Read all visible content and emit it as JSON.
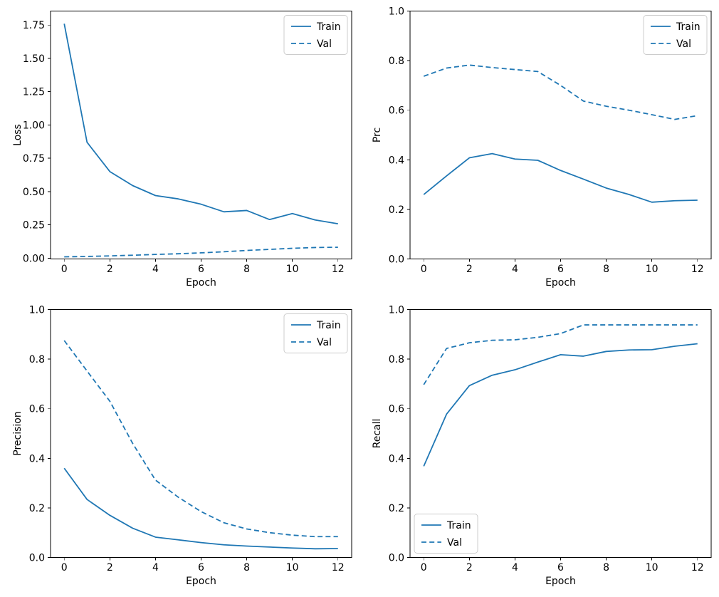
{
  "figure": {
    "background": "#ffffff",
    "line_color": "#1f77b4",
    "spine_color": "#000000",
    "legend_border_color": "#cccccc",
    "legend_background": "rgba(255,255,255,0.85)"
  },
  "chart_data": [
    {
      "name": "loss",
      "type": "line",
      "title": "",
      "xlabel": "Epoch",
      "ylabel": "Loss",
      "x": [
        0,
        1,
        2,
        3,
        4,
        5,
        6,
        7,
        8,
        9,
        10,
        11,
        12
      ],
      "xlim": [
        -0.6,
        12.6
      ],
      "ylim": [
        -0.006,
        1.8555
      ],
      "xticks": [
        0,
        2,
        4,
        6,
        8,
        10,
        12
      ],
      "xtick_labels": [
        "0",
        "2",
        "4",
        "6",
        "8",
        "10",
        "12"
      ],
      "yticks": [
        0.0,
        0.25,
        0.5,
        0.75,
        1.0,
        1.25,
        1.5,
        1.75
      ],
      "ytick_labels": [
        "0.00",
        "0.25",
        "0.50",
        "0.75",
        "1.00",
        "1.25",
        "1.50",
        "1.75"
      ],
      "grid": false,
      "legend_position": "upper right",
      "series": [
        {
          "name": "Train",
          "style": "solid",
          "values": [
            1.76,
            0.87,
            0.65,
            0.545,
            0.47,
            0.445,
            0.405,
            0.348,
            0.358,
            0.29,
            0.335,
            0.287,
            0.258
          ]
        },
        {
          "name": "Val",
          "style": "dashed",
          "values": [
            0.01,
            0.013,
            0.017,
            0.022,
            0.028,
            0.033,
            0.04,
            0.048,
            0.058,
            0.066,
            0.074,
            0.08,
            0.082
          ]
        }
      ]
    },
    {
      "name": "prc",
      "type": "line",
      "title": "",
      "xlabel": "Epoch",
      "ylabel": "Prc",
      "x": [
        0,
        1,
        2,
        3,
        4,
        5,
        6,
        7,
        8,
        9,
        10,
        11,
        12
      ],
      "xlim": [
        -0.6,
        12.6
      ],
      "ylim": [
        0.0,
        1.0
      ],
      "xticks": [
        0,
        2,
        4,
        6,
        8,
        10,
        12
      ],
      "xtick_labels": [
        "0",
        "2",
        "4",
        "6",
        "8",
        "10",
        "12"
      ],
      "yticks": [
        0.0,
        0.2,
        0.4,
        0.6,
        0.8,
        1.0
      ],
      "ytick_labels": [
        "0.0",
        "0.2",
        "0.4",
        "0.6",
        "0.8",
        "1.0"
      ],
      "grid": false,
      "legend_position": "upper right",
      "series": [
        {
          "name": "Train",
          "style": "solid",
          "values": [
            0.26,
            0.335,
            0.408,
            0.425,
            0.403,
            0.398,
            0.357,
            0.322,
            0.286,
            0.26,
            0.229,
            0.235,
            0.237
          ]
        },
        {
          "name": "Val",
          "style": "dashed",
          "values": [
            0.737,
            0.77,
            0.782,
            0.772,
            0.764,
            0.756,
            0.7,
            0.637,
            0.616,
            0.6,
            0.582,
            0.563,
            0.578
          ]
        }
      ]
    },
    {
      "name": "precision",
      "type": "line",
      "title": "",
      "xlabel": "Epoch",
      "ylabel": "Precision",
      "x": [
        0,
        1,
        2,
        3,
        4,
        5,
        6,
        7,
        8,
        9,
        10,
        11,
        12
      ],
      "xlim": [
        -0.6,
        12.6
      ],
      "ylim": [
        0.0,
        1.0
      ],
      "xticks": [
        0,
        2,
        4,
        6,
        8,
        10,
        12
      ],
      "xtick_labels": [
        "0",
        "2",
        "4",
        "6",
        "8",
        "10",
        "12"
      ],
      "yticks": [
        0.0,
        0.2,
        0.4,
        0.6,
        0.8,
        1.0
      ],
      "ytick_labels": [
        "0.0",
        "0.2",
        "0.4",
        "0.6",
        "0.8",
        "1.0"
      ],
      "grid": false,
      "legend_position": "upper right",
      "series": [
        {
          "name": "Train",
          "style": "solid",
          "values": [
            0.36,
            0.234,
            0.17,
            0.118,
            0.082,
            0.071,
            0.06,
            0.051,
            0.046,
            0.042,
            0.038,
            0.035,
            0.036
          ]
        },
        {
          "name": "Val",
          "style": "dashed",
          "values": [
            0.875,
            0.752,
            0.63,
            0.46,
            0.312,
            0.243,
            0.185,
            0.14,
            0.115,
            0.1,
            0.09,
            0.084,
            0.084
          ]
        }
      ]
    },
    {
      "name": "recall",
      "type": "line",
      "title": "",
      "xlabel": "Epoch",
      "ylabel": "Recall",
      "x": [
        0,
        1,
        2,
        3,
        4,
        5,
        6,
        7,
        8,
        9,
        10,
        11,
        12
      ],
      "xlim": [
        -0.6,
        12.6
      ],
      "ylim": [
        0.0,
        1.0
      ],
      "xticks": [
        0,
        2,
        4,
        6,
        8,
        10,
        12
      ],
      "xtick_labels": [
        "0",
        "2",
        "4",
        "6",
        "8",
        "10",
        "12"
      ],
      "yticks": [
        0.0,
        0.2,
        0.4,
        0.6,
        0.8,
        1.0
      ],
      "ytick_labels": [
        "0.0",
        "0.2",
        "0.4",
        "0.6",
        "0.8",
        "1.0"
      ],
      "grid": false,
      "legend_position": "lower left",
      "series": [
        {
          "name": "Train",
          "style": "solid",
          "values": [
            0.368,
            0.578,
            0.693,
            0.735,
            0.757,
            0.788,
            0.818,
            0.812,
            0.831,
            0.837,
            0.838,
            0.852,
            0.862
          ]
        },
        {
          "name": "Val",
          "style": "dashed",
          "values": [
            0.697,
            0.843,
            0.866,
            0.876,
            0.878,
            0.888,
            0.903,
            0.938,
            0.938,
            0.938,
            0.938,
            0.938,
            0.938
          ]
        }
      ]
    }
  ]
}
